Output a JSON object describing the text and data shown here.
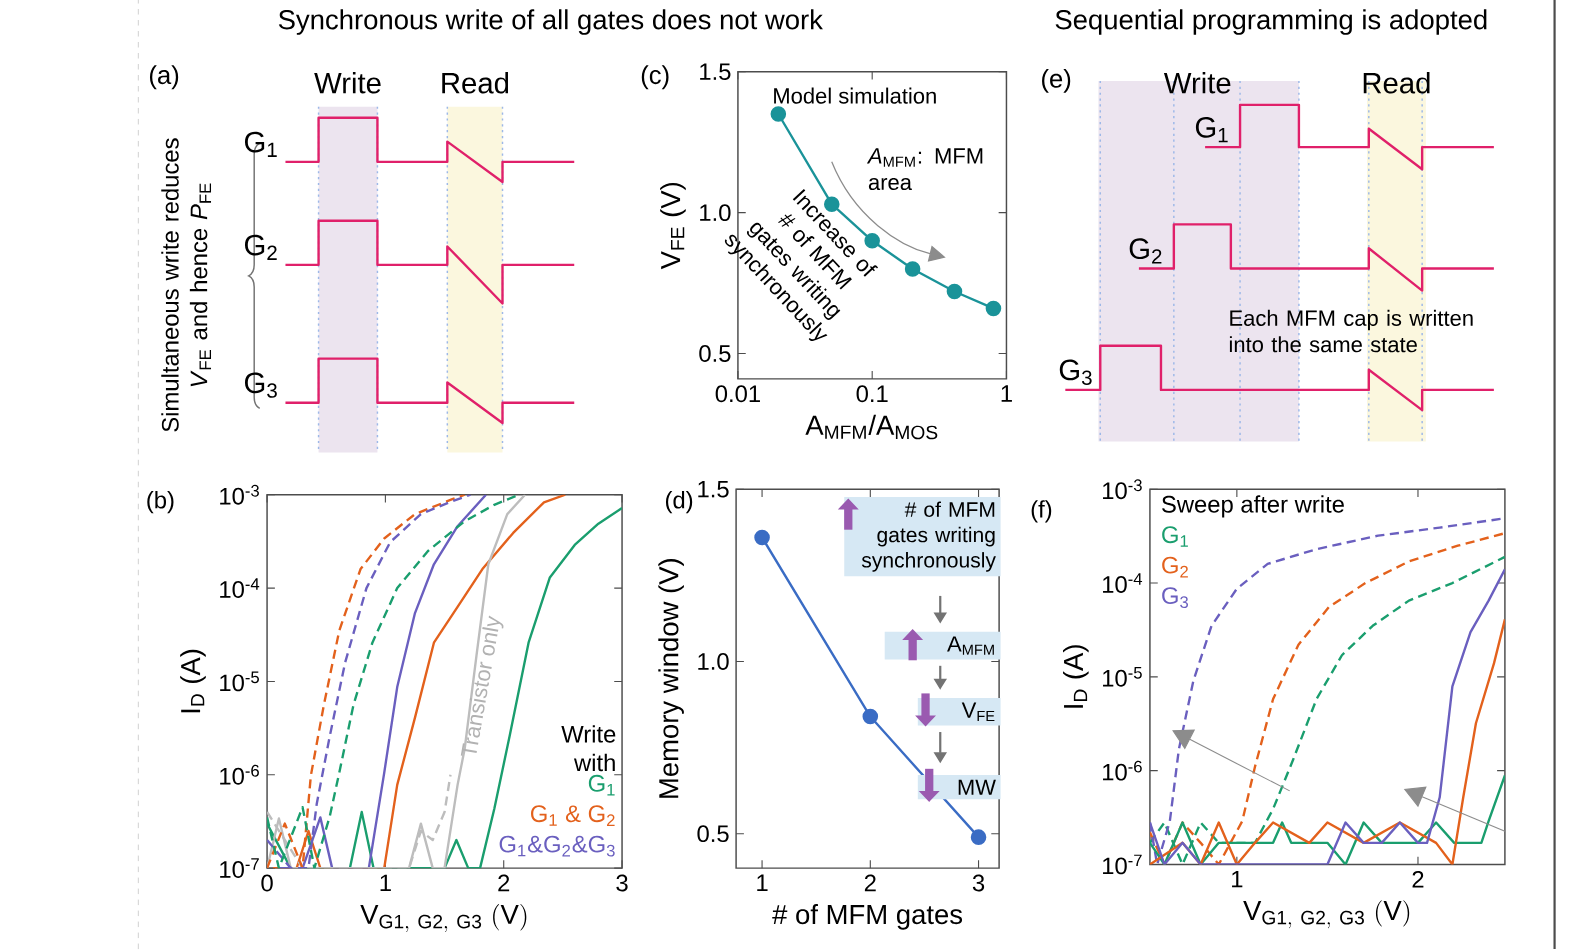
{
  "chart_data": [
    {
      "type": "other",
      "title": "Synchronous write of all gates does not work",
      "annotations": [
        "(a)",
        "Simultaneous write reduces *V*$_{FE}$ and hence *P*$_{FE}$",
        "Write",
        "Read",
        "G$_{1}$",
        "G$_{2}$",
        "G$_{3}$"
      ]
    },
    {
      "type": "line",
      "xlabel": "A$_{MFM}$/A$_{MOS}$",
      "ylabel": "V$_{FE}$ (V)",
      "log": "x",
      "xlim": [
        0.01,
        1
      ],
      "ylim": [
        0.41,
        1.5
      ],
      "xticks": [
        {
          "value": 0.01,
          "label": "0.01"
        },
        {
          "value": 0.1,
          "label": "0.1"
        },
        {
          "value": 1,
          "label": "1"
        }
      ],
      "yticks": [
        {
          "value": 0.5,
          "label": "0.5"
        },
        {
          "value": 1.0,
          "label": "1.0"
        },
        {
          "value": 1.5,
          "label": "1.5"
        }
      ],
      "marker": "circle",
      "annotations": [
        "(c)",
        "Model simulation",
        "*A*$_{MFM}$: MFM area",
        "Increase of # of MFM gates writing synchronously"
      ],
      "series": [
        {
          "color": "#1a9399",
          "x": [
            0.02,
            0.05,
            0.1,
            0.2,
            0.41,
            0.8
          ],
          "values": [
            1.35,
            1.03,
            0.9,
            0.8,
            0.72,
            0.66
          ]
        }
      ]
    },
    {
      "type": "other",
      "title": "Sequential programming is adopted",
      "annotations": [
        "(e)",
        "Each MFM cap is written into the same state",
        "Write",
        "Read",
        "G$_{1}$",
        "G$_{2}$",
        "G$_{3}$"
      ]
    },
    {
      "type": "line",
      "xlabel": "\\mathrm{V_{G1,\\ G2,\\ G3}\\ (V)}",
      "ylabel": "I$_{D}$ (A)",
      "log": "y",
      "xlim": [
        0,
        3
      ],
      "ylim": [
        1e-07,
        0.001
      ],
      "xticks": [
        0,
        1,
        2,
        3
      ],
      "yticks": [
        {
          "value": 1e-07,
          "label": "10$^{-7}$"
        },
        {
          "value": 1e-06,
          "label": "10$^{-6}$"
        },
        {
          "value": 1e-05,
          "label": "10$^{-5}$"
        },
        {
          "value": 0.0001,
          "label": "10$^{-4}$"
        },
        {
          "value": 0.001,
          "label": "10$^{-3}$"
        }
      ],
      "legend": "bottom right",
      "legend_title": "Write with",
      "annotations": [
        "(b)",
        {
          "text": "Transistor only",
          "x": 1.82,
          "y": 8.7e-06
        }
      ],
      "series": [
        {
          "name": "G$_{1}$",
          "color": "#1a9e6e",
          "x": [
            0,
            0.2,
            0.7,
            0.8,
            0.9,
            1.5,
            1.6,
            1.7,
            1.8,
            1.92,
            2.05,
            2.21,
            2.39,
            2.6,
            2.8,
            3.0
          ],
          "values": [
            3e-07,
            1e-07,
            1e-07,
            4e-07,
            1e-07,
            1e-07,
            2e-07,
            1e-07,
            1e-07,
            4.3e-07,
            2.6e-06,
            2.6e-05,
            0.00013,
            0.00029,
            0.00049,
            0.00072
          ]
        },
        {
          "name": "G$_{1}$ & G$_{2}$",
          "color": "#e3611c",
          "x": [
            0.05,
            0.25,
            0.35,
            0.45,
            0.99,
            1.1,
            1.25,
            1.41,
            1.61,
            1.82,
            2.08,
            2.34,
            2.52
          ],
          "values": [
            1e-07,
            1e-07,
            2.5e-07,
            1e-07,
            1e-07,
            7.8e-07,
            4.1e-06,
            2.6e-05,
            6.3e-05,
            0.00016,
            0.00039,
            0.00083,
            0.001
          ]
        },
        {
          "name": "G$_{1}$&G$_{2}$&G$_{3}$",
          "color": "#6a5fbf",
          "x": [
            0.1,
            0.3,
            0.45,
            0.55,
            0.86,
            0.99,
            1.1,
            1.25,
            1.41,
            1.61,
            1.85
          ],
          "values": [
            1e-07,
            1e-07,
            3.5e-07,
            1e-07,
            1e-07,
            1.05e-06,
            8.7e-06,
            5.4e-05,
            0.00018,
            0.00046,
            0.001
          ]
        },
        {
          "color": "#bdbdbd",
          "x": [
            0,
            0.1,
            0.2,
            1.2,
            1.3,
            1.4,
            1.5,
            1.61,
            1.67,
            1.77,
            1.87,
            2.03,
            2.18
          ],
          "values": [
            1e-07,
            3.4e-07,
            1e-07,
            1e-07,
            3e-07,
            1e-07,
            1e-07,
            7.8e-07,
            1.9e-06,
            1.9e-05,
            0.00018,
            0.00062,
            0.001
          ]
        },
        {
          "color": "#bdbdbd",
          "line_style": "dashed",
          "x": [
            0,
            0.3,
            1.2,
            1.3,
            1.4,
            1.5,
            1.55
          ],
          "values": [
            4e-07,
            1e-07,
            1e-07,
            2.5e-07,
            2e-07,
            4e-07,
            1e-06
          ]
        },
        {
          "color": "#e3611c",
          "line_style": "dashed",
          "x": [
            0,
            0.15,
            0.3,
            0.37,
            0.48,
            0.61,
            0.79,
            0.99,
            1.25,
            1.56,
            1.67
          ],
          "values": [
            1e-07,
            3e-07,
            1e-07,
            9.8e-07,
            5.6e-06,
            3.5e-05,
            0.00016,
            0.00034,
            0.00062,
            0.00089,
            0.001
          ]
        },
        {
          "color": "#6a5fbf",
          "line_style": "dashed",
          "x": [
            0,
            0.2,
            0.35,
            0.42,
            0.53,
            0.66,
            0.84,
            1.04,
            1.3,
            1.56,
            1.72
          ],
          "values": [
            2e-07,
            1e-07,
            1e-07,
            4.9e-07,
            2.6e-06,
            1.6e-05,
            0.0001,
            0.00031,
            0.00062,
            0.00085,
            0.001
          ]
        },
        {
          "color": "#1a9e6e",
          "line_style": "dashed",
          "x": [
            0,
            0.1,
            0.3,
            0.4,
            0.53,
            0.61,
            0.73,
            0.89,
            1.1,
            1.36,
            1.67,
            1.92,
            2.13
          ],
          "values": [
            3.5e-07,
            1e-07,
            4.5e-07,
            1e-07,
            3.6e-07,
            1.05e-06,
            5.6e-06,
            2.6e-05,
            0.0001,
            0.00025,
            0.00052,
            0.00078,
            0.001
          ]
        }
      ]
    },
    {
      "type": "line",
      "xlabel": "# of MFM gates",
      "ylabel": "Memory window (V)",
      "xlim": [
        0.76,
        3.19
      ],
      "ylim": [
        0.4,
        1.5
      ],
      "xticks": [
        1,
        2,
        3
      ],
      "yticks": [
        0.5,
        {
          "value": 1.0,
          "label": "1.0"
        },
        1.5
      ],
      "marker": "circle",
      "annotations": [
        "(d)",
        "# of MFM gates writing synchronously",
        "A$_{MFM}$",
        "V$_{FE}$",
        "MW"
      ],
      "x": [
        1,
        2,
        3
      ],
      "series": [
        {
          "color": "#3a6cc4",
          "values": [
            1.36,
            0.84,
            0.49
          ]
        }
      ]
    },
    {
      "type": "line",
      "xlabel": "\\mathrm{V_{G1,\\ G2,\\ G3}\\ (V)}",
      "ylabel": "I$_{D}$ (A)",
      "log": "y",
      "xlim": [
        0.52,
        2.48
      ],
      "ylim": [
        1e-07,
        0.001
      ],
      "xticks": [
        1,
        2
      ],
      "yticks": [
        {
          "value": 1e-07,
          "label": "10$^{-7}$"
        },
        {
          "value": 1e-06,
          "label": "10$^{-6}$"
        },
        {
          "value": 1e-05,
          "label": "10$^{-5}$"
        },
        {
          "value": 0.0001,
          "label": "10$^{-4}$"
        },
        {
          "value": 0.001,
          "label": "10$^{-3}$"
        }
      ],
      "legend": "top left",
      "legend_title": "Sweep after write",
      "annotations": [
        "(f)"
      ],
      "series": [
        {
          "name": "G$_{1}$",
          "color": "#1a9e6e",
          "line_style": "dashed",
          "x": [
            0.52,
            0.6,
            0.7,
            0.8,
            0.9,
            1.0,
            1.1,
            1.2,
            1.31,
            1.44,
            1.58,
            1.75,
            1.95,
            2.19,
            2.48
          ],
          "values": [
            1.7e-07,
            2.8e-07,
            1e-07,
            2.8e-07,
            1.7e-07,
            1.7e-07,
            1.7e-07,
            3.9e-07,
            1.3e-06,
            5.8e-06,
            1.7e-05,
            3.5e-05,
            6.5e-05,
            0.0001,
            0.00019
          ]
        },
        {
          "name": "G$_{2}$",
          "color": "#e3611c",
          "line_style": "dashed",
          "x": [
            0.52,
            0.6,
            0.7,
            0.8,
            0.9,
            1.03,
            1.1,
            1.2,
            1.34,
            1.51,
            1.71,
            1.95,
            2.22,
            2.48
          ],
          "values": [
            2.2e-07,
            1e-07,
            2.8e-07,
            1.7e-07,
            1e-07,
            2.9e-07,
            1.1e-06,
            5.8e-06,
            2.2e-05,
            5.6e-05,
            0.0001,
            0.00017,
            0.00025,
            0.00034
          ]
        },
        {
          "name": "G$_{3}$",
          "color": "#6a5fbf",
          "line_style": "dashed",
          "x": [
            0.52,
            0.56,
            0.63,
            0.68,
            0.76,
            0.86,
            1.0,
            1.17,
            1.44,
            1.78,
            2.12,
            2.48
          ],
          "values": [
            2.8e-07,
            1e-07,
            2.9e-07,
            1.7e-06,
            9.1e-06,
            3.5e-05,
            8.7e-05,
            0.00016,
            0.00023,
            0.00032,
            0.00039,
            0.00049
          ]
        },
        {
          "color": "#1a9e6e",
          "x": [
            0.52,
            0.6,
            0.7,
            0.8,
            0.9,
            1.2,
            1.25,
            1.3,
            1.5,
            1.6,
            1.7,
            1.8,
            2.0,
            2.1,
            2.2,
            2.35,
            2.39,
            2.48
          ],
          "values": [
            1.7e-07,
            1e-07,
            2.8e-07,
            1e-07,
            1.7e-07,
            1.7e-07,
            2.8e-07,
            1.7e-07,
            1.7e-07,
            1e-07,
            2.8e-07,
            1.7e-07,
            1.7e-07,
            2.8e-07,
            1.7e-07,
            1.7e-07,
            2.9e-07,
            8.9e-07
          ]
        },
        {
          "color": "#e3611c",
          "x": [
            0.52,
            0.7,
            0.8,
            0.9,
            1.0,
            1.1,
            1.2,
            1.4,
            1.5,
            1.7,
            1.9,
            2.1,
            2.19,
            2.25,
            2.32,
            2.42,
            2.48
          ],
          "values": [
            1e-07,
            1.7e-07,
            1e-07,
            2.8e-07,
            1e-07,
            1.7e-07,
            2.8e-07,
            1.7e-07,
            2.8e-07,
            1.7e-07,
            2.8e-07,
            1.7e-07,
            1e-07,
            5.2e-07,
            3.2e-06,
            1.4e-05,
            4.1e-05
          ]
        },
        {
          "color": "#6a5fbf",
          "x": [
            0.52,
            0.6,
            0.7,
            0.8,
            0.9,
            1.0,
            1.5,
            1.6,
            1.7,
            1.8,
            1.9,
            2.0,
            2.05,
            2.12,
            2.19,
            2.29,
            2.39,
            2.48
          ],
          "values": [
            2.8e-07,
            1e-07,
            1.7e-07,
            1e-07,
            1e-07,
            1e-07,
            1e-07,
            2.8e-07,
            1.7e-07,
            1.7e-07,
            2.8e-07,
            1.7e-07,
            1.7e-07,
            5.2e-07,
            7.9e-06,
            3e-05,
            6.5e-05,
            0.00014
          ]
        }
      ]
    }
  ]
}
